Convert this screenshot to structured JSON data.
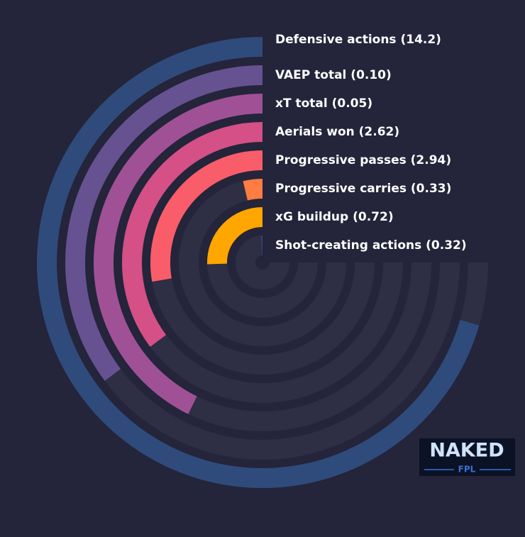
{
  "chart_data": {
    "type": "radial-bar",
    "categories": [
      "Defensive actions (14.2)",
      "VAEP total (0.10)",
      "xT total (0.05)",
      "Aerials won (2.62)",
      "Progressive passes (2.94)",
      "Progressive carries (0.33)",
      "xG buildup (0.72)",
      "Shot-creating actions (0.32)"
    ],
    "values": [
      94,
      47,
      57,
      47,
      37,
      5,
      34,
      1
    ],
    "colors": [
      "#2f4b7c",
      "#665191",
      "#a05195",
      "#d45087",
      "#f95d6a",
      "#ff7c43",
      "#ffa600",
      "#2f4b7c"
    ],
    "rlim": [
      0,
      100
    ],
    "logo": {
      "title": "NAKED",
      "subtitle": "FPL"
    }
  }
}
